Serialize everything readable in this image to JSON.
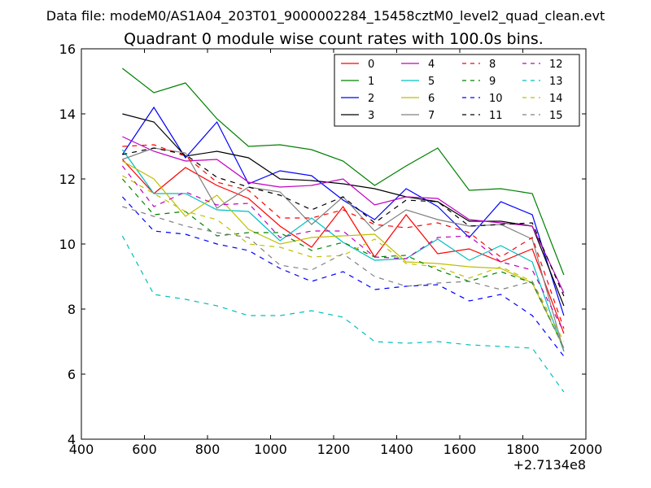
{
  "chart_data": {
    "type": "line",
    "subtitle": "Data file: modeM0/AS1A04_203T01_9000002284_15458cztM0_level2_quad_clean.evt",
    "title": "Quadrant 0 module wise count rates with 100.0s bins.",
    "xlabel": "",
    "ylabel": "",
    "x_offset_label": "+2.7134e8",
    "xlim": [
      400,
      2000
    ],
    "ylim": [
      4,
      16
    ],
    "x_ticks": [
      400,
      600,
      800,
      1000,
      1200,
      1400,
      1600,
      1800,
      2000
    ],
    "y_ticks": [
      4,
      6,
      8,
      10,
      12,
      14,
      16
    ],
    "x_tick_labels": [
      "400",
      "600",
      "800",
      "1000",
      "1200",
      "1400",
      "1600",
      "1800",
      "2000"
    ],
    "y_tick_labels": [
      "4",
      "6",
      "8",
      "10",
      "12",
      "14",
      "16"
    ],
    "grid": false,
    "legend_position": "top-right",
    "x": [
      530,
      630,
      730,
      830,
      930,
      1030,
      1130,
      1230,
      1330,
      1430,
      1530,
      1630,
      1730,
      1830,
      1930
    ],
    "series": [
      {
        "name": "0",
        "color": "#ff0000",
        "dash": "solid",
        "values": [
          12.6,
          11.55,
          12.35,
          11.8,
          11.4,
          10.55,
          9.9,
          11.15,
          9.6,
          10.9,
          9.7,
          9.85,
          9.45,
          9.85,
          7.25
        ]
      },
      {
        "name": "1",
        "color": "#008000",
        "dash": "solid",
        "values": [
          15.4,
          14.65,
          14.95,
          13.85,
          13.0,
          13.05,
          12.9,
          12.55,
          11.8,
          12.4,
          12.95,
          11.65,
          11.7,
          11.55,
          9.05
        ]
      },
      {
        "name": "2",
        "color": "#0000ff",
        "dash": "solid",
        "values": [
          12.75,
          14.2,
          12.65,
          13.75,
          11.85,
          12.25,
          12.1,
          11.35,
          10.75,
          11.7,
          11.15,
          10.2,
          11.3,
          10.9,
          7.8
        ]
      },
      {
        "name": "3",
        "color": "#000000",
        "dash": "solid",
        "values": [
          14.0,
          13.75,
          12.7,
          12.85,
          12.65,
          12.0,
          11.95,
          11.85,
          11.7,
          11.45,
          11.3,
          10.7,
          10.7,
          10.55,
          8.1
        ]
      },
      {
        "name": "4",
        "color": "#bf00bf",
        "dash": "solid",
        "values": [
          13.3,
          12.85,
          12.55,
          12.6,
          11.9,
          11.75,
          11.8,
          12.0,
          11.2,
          11.45,
          11.4,
          10.75,
          10.65,
          10.55,
          8.5
        ]
      },
      {
        "name": "5",
        "color": "#00bfbf",
        "dash": "solid",
        "values": [
          12.9,
          11.55,
          11.55,
          11.05,
          11.0,
          10.1,
          10.8,
          10.05,
          9.5,
          9.55,
          10.15,
          9.5,
          9.95,
          9.45,
          6.7
        ]
      },
      {
        "name": "6",
        "color": "#bfbf00",
        "dash": "solid",
        "values": [
          12.55,
          12.0,
          10.85,
          11.5,
          10.45,
          10.0,
          10.2,
          10.25,
          10.3,
          9.45,
          9.4,
          9.3,
          9.25,
          8.8,
          6.8
        ]
      },
      {
        "name": "7",
        "color": "#808080",
        "dash": "solid",
        "values": [
          12.6,
          12.95,
          12.8,
          11.1,
          11.75,
          11.6,
          10.6,
          11.45,
          10.4,
          11.05,
          10.75,
          10.55,
          10.6,
          10.15,
          6.7
        ]
      },
      {
        "name": "8",
        "color": "#ff0000",
        "dash": "dashed",
        "values": [
          13.0,
          13.05,
          12.7,
          11.9,
          11.65,
          10.8,
          10.8,
          11.05,
          10.6,
          10.5,
          10.65,
          10.35,
          9.6,
          10.2,
          7.4
        ]
      },
      {
        "name": "9",
        "color": "#008000",
        "dash": "dashed",
        "values": [
          12.0,
          10.9,
          11.0,
          10.25,
          10.35,
          10.35,
          9.8,
          10.05,
          9.6,
          9.65,
          9.2,
          8.85,
          9.15,
          8.8,
          6.8
        ]
      },
      {
        "name": "10",
        "color": "#0000ff",
        "dash": "dashed",
        "values": [
          11.45,
          10.4,
          10.3,
          10.0,
          9.8,
          9.25,
          8.85,
          9.15,
          8.6,
          8.7,
          8.75,
          8.25,
          8.45,
          7.8,
          6.55
        ]
      },
      {
        "name": "11",
        "color": "#000000",
        "dash": "dashed",
        "values": [
          12.75,
          12.95,
          12.75,
          12.05,
          11.75,
          11.5,
          11.05,
          11.45,
          10.65,
          11.35,
          11.3,
          10.55,
          10.6,
          10.65,
          8.4
        ]
      },
      {
        "name": "12",
        "color": "#bf00bf",
        "dash": "dashed",
        "values": [
          12.4,
          11.15,
          11.6,
          11.2,
          11.25,
          10.2,
          10.4,
          10.4,
          9.6,
          9.55,
          10.2,
          10.25,
          9.45,
          9.2,
          7.3
        ]
      },
      {
        "name": "13",
        "color": "#00bfbf",
        "dash": "dashed",
        "values": [
          10.25,
          8.45,
          8.3,
          8.1,
          7.8,
          7.8,
          7.95,
          7.75,
          7.0,
          6.95,
          7.0,
          6.9,
          6.85,
          6.8,
          5.45
        ]
      },
      {
        "name": "14",
        "color": "#bfbf00",
        "dash": "dashed",
        "values": [
          12.1,
          11.55,
          11.0,
          10.75,
          10.0,
          9.9,
          9.6,
          9.65,
          10.15,
          9.4,
          9.3,
          8.95,
          9.3,
          8.85,
          7.0
        ]
      },
      {
        "name": "15",
        "color": "#808080",
        "dash": "dashed",
        "values": [
          11.15,
          10.85,
          10.55,
          10.35,
          10.2,
          9.35,
          9.2,
          9.7,
          9.0,
          8.7,
          8.8,
          8.85,
          8.6,
          8.85,
          6.8
        ]
      }
    ]
  }
}
